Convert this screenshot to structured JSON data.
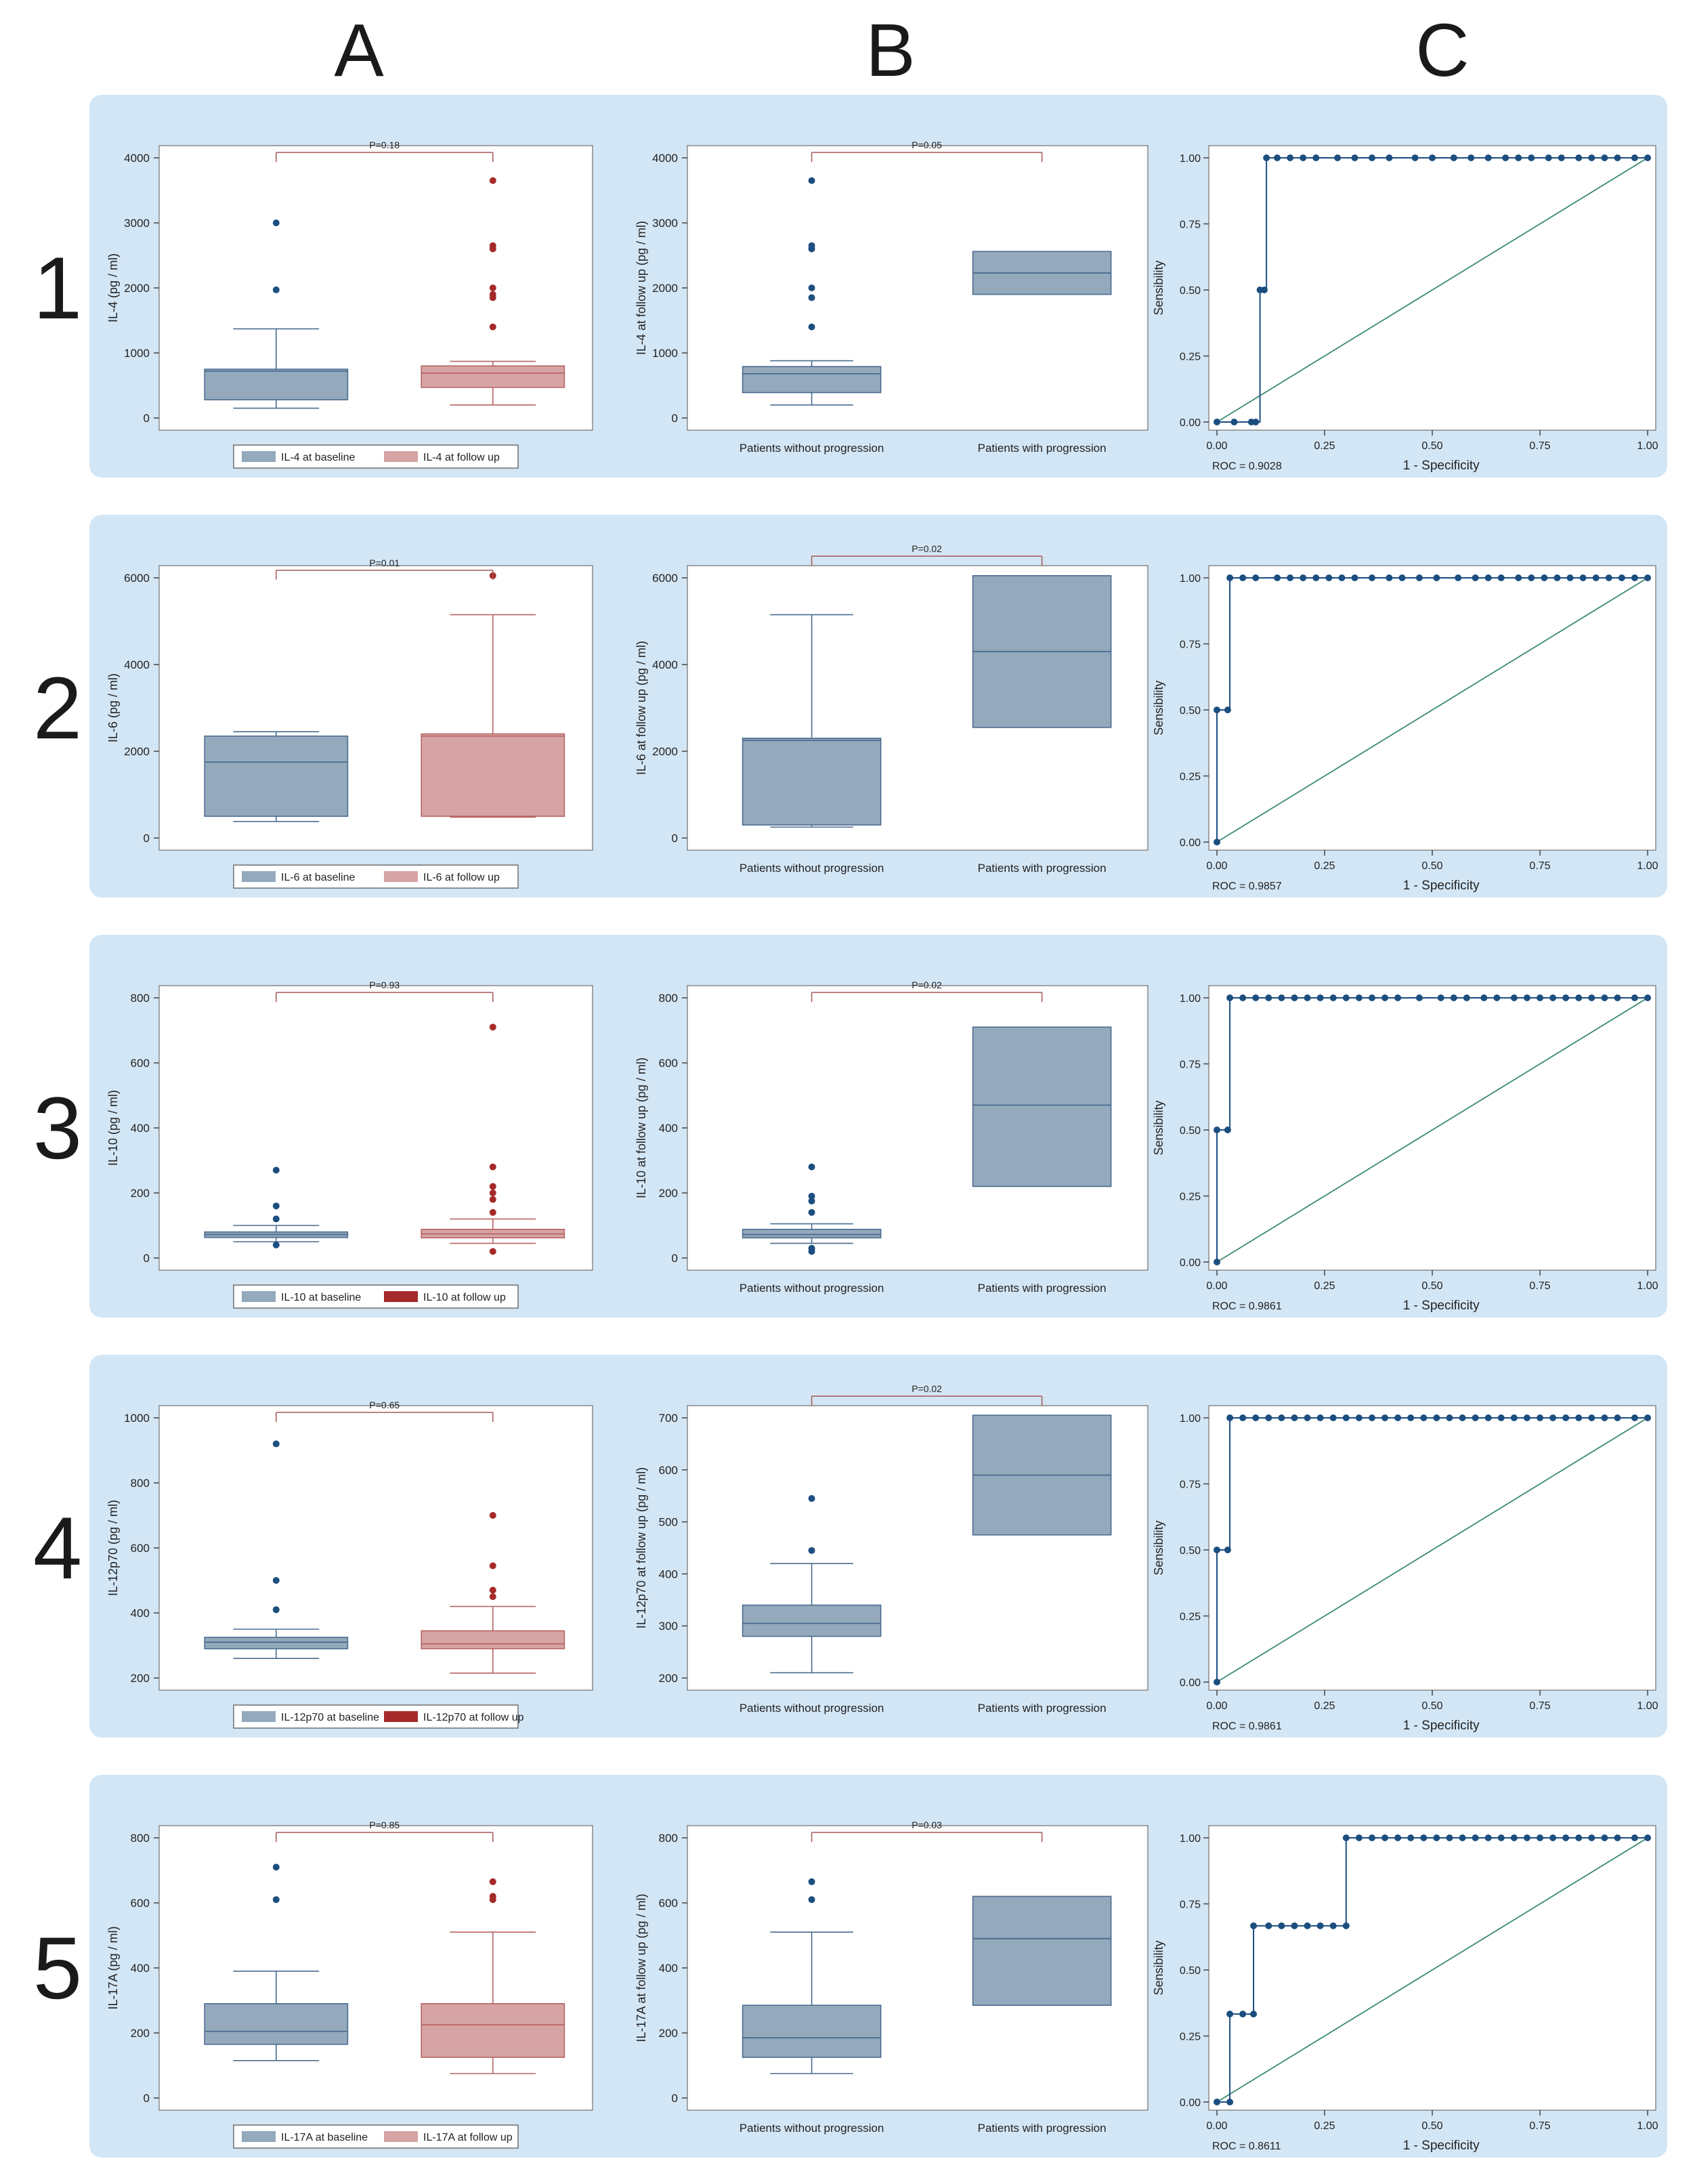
{
  "column_labels": [
    "A",
    "B",
    "C"
  ],
  "row_labels": [
    "1",
    "2",
    "3",
    "4",
    "5"
  ],
  "colors": {
    "band": "#d3e6f5",
    "baseline_box": "#95a9bd",
    "baseline_edge": "#4a6c8f",
    "follow_box_light": "#d6a4a4",
    "follow_edge_light": "#b86464",
    "follow_swatch_dark": "#a52a2a",
    "roc_line": "#1c4e80",
    "diag_line": "#3a8a78"
  },
  "chart_data": [
    {
      "type": "box",
      "panel": "1A",
      "ylabel": "IL-4  (pg / ml)",
      "ylim": [
        0,
        4000
      ],
      "yticks": [
        0,
        1000,
        2000,
        3000,
        4000
      ],
      "pvalue": "P=0.18",
      "legend": [
        "IL-4 at baseline",
        "IL-4 at follow up"
      ],
      "follow_color": "light",
      "boxes": [
        {
          "q1": 280,
          "median": 720,
          "q3": 750,
          "whislo": 150,
          "whishi": 1370,
          "fliers": [
            1970,
            3000
          ]
        },
        {
          "q1": 470,
          "median": 690,
          "q3": 800,
          "whislo": 200,
          "whishi": 870,
          "fliers": [
            1400,
            1850,
            1900,
            2000,
            2600,
            2650,
            3650
          ]
        }
      ]
    },
    {
      "type": "box",
      "panel": "1B",
      "ylabel": "IL-4 at follow up (pg / ml)",
      "ylim": [
        0,
        4000
      ],
      "yticks": [
        0,
        1000,
        2000,
        3000,
        4000
      ],
      "pvalue": "P=0.05",
      "categories": [
        "Patients without progression",
        "Patients with progression"
      ],
      "boxes": [
        {
          "q1": 390,
          "median": 680,
          "q3": 790,
          "whislo": 200,
          "whishi": 880,
          "fliers": [
            1400,
            1850,
            2000,
            2600,
            2650,
            3650
          ]
        },
        {
          "q1": 1900,
          "median": 2230,
          "q3": 2560,
          "whislo": 1900,
          "whishi": 2560,
          "fliers": []
        }
      ]
    },
    {
      "type": "line",
      "panel": "1C",
      "xlabel": "1 - Specificity",
      "ylabel": "Sensibility",
      "xticks": [
        "0.00",
        "0.25",
        "0.50",
        "0.75",
        "1.00"
      ],
      "yticks": [
        "0.00",
        "0.25",
        "0.50",
        "0.75",
        "1.00"
      ],
      "roc_label": "ROC = 0.9028",
      "x": [
        0,
        0.04,
        0.08,
        0.09,
        0.1,
        0.11,
        0.115,
        0.14,
        0.17,
        0.2,
        0.23,
        0.28,
        0.32,
        0.36,
        0.4,
        0.46,
        0.5,
        0.55,
        0.59,
        0.63,
        0.67,
        0.7,
        0.73,
        0.77,
        0.8,
        0.84,
        0.87,
        0.9,
        0.93,
        0.97,
        1.0
      ],
      "y": [
        0,
        0,
        0,
        0,
        0.5,
        0.5,
        1,
        1,
        1,
        1,
        1,
        1,
        1,
        1,
        1,
        1,
        1,
        1,
        1,
        1,
        1,
        1,
        1,
        1,
        1,
        1,
        1,
        1,
        1,
        1,
        1
      ]
    },
    {
      "type": "box",
      "panel": "2A",
      "ylabel": "IL-6  (pg / ml)",
      "ylim": [
        0,
        6000
      ],
      "yticks": [
        0,
        2000,
        4000,
        6000
      ],
      "pvalue": "P=0.01",
      "legend": [
        "IL-6 at baseline",
        "IL-6 at follow up"
      ],
      "follow_color": "light",
      "boxes": [
        {
          "q1": 500,
          "median": 1750,
          "q3": 2350,
          "whislo": 380,
          "whishi": 2450,
          "fliers": []
        },
        {
          "q1": 500,
          "median": 2350,
          "q3": 2400,
          "whislo": 480,
          "whishi": 5150,
          "fliers": [
            6050
          ]
        }
      ]
    },
    {
      "type": "box",
      "panel": "2B",
      "ylabel": "IL-6 at follow up (pg / ml)",
      "ylim": [
        0,
        6000
      ],
      "yticks": [
        0,
        2000,
        4000,
        6000
      ],
      "pvalue": "P=0.02",
      "categories": [
        "Patients without progression",
        "Patients with progression"
      ],
      "boxes": [
        {
          "q1": 300,
          "median": 2250,
          "q3": 2300,
          "whislo": 250,
          "whishi": 5150,
          "fliers": []
        },
        {
          "q1": 2550,
          "median": 4300,
          "q3": 6050,
          "whislo": 2550,
          "whishi": 6050,
          "fliers": []
        }
      ]
    },
    {
      "type": "line",
      "panel": "2C",
      "xlabel": "1 - Specificity",
      "ylabel": "Sensibility",
      "xticks": [
        "0.00",
        "0.25",
        "0.50",
        "0.75",
        "1.00"
      ],
      "yticks": [
        "0.00",
        "0.25",
        "0.50",
        "0.75",
        "1.00"
      ],
      "roc_label": "ROC = 0.9857",
      "x": [
        0,
        0,
        0.025,
        0.03,
        0.06,
        0.09,
        0.14,
        0.17,
        0.2,
        0.23,
        0.26,
        0.29,
        0.32,
        0.36,
        0.4,
        0.43,
        0.47,
        0.51,
        0.56,
        0.6,
        0.63,
        0.66,
        0.7,
        0.73,
        0.76,
        0.79,
        0.82,
        0.85,
        0.88,
        0.91,
        0.94,
        0.97,
        1.0
      ],
      "y": [
        0,
        0.5,
        0.5,
        1,
        1,
        1,
        1,
        1,
        1,
        1,
        1,
        1,
        1,
        1,
        1,
        1,
        1,
        1,
        1,
        1,
        1,
        1,
        1,
        1,
        1,
        1,
        1,
        1,
        1,
        1,
        1,
        1,
        1
      ]
    },
    {
      "type": "box",
      "panel": "3A",
      "ylabel": "IL-10  (pg / ml)",
      "ylim": [
        0,
        800
      ],
      "yticks": [
        0,
        200,
        400,
        600,
        800
      ],
      "pvalue": "P=0.93",
      "legend": [
        "IL-10 at baseline",
        "IL-10 at follow up"
      ],
      "follow_color": "dark",
      "boxes": [
        {
          "q1": 63,
          "median": 72,
          "q3": 80,
          "whislo": 50,
          "whishi": 100,
          "fliers": [
            40,
            120,
            160,
            270
          ]
        },
        {
          "q1": 62,
          "median": 74,
          "q3": 88,
          "whislo": 45,
          "whishi": 120,
          "fliers": [
            20,
            140,
            180,
            200,
            220,
            280,
            710
          ]
        }
      ]
    },
    {
      "type": "box",
      "panel": "3B",
      "ylabel": "IL-10 at follow up (pg / ml)",
      "ylim": [
        0,
        800
      ],
      "yticks": [
        0,
        200,
        400,
        600,
        800
      ],
      "pvalue": "P=0.02",
      "categories": [
        "Patients without progression",
        "Patients with progression"
      ],
      "boxes": [
        {
          "q1": 62,
          "median": 72,
          "q3": 88,
          "whislo": 45,
          "whishi": 105,
          "fliers": [
            20,
            30,
            140,
            175,
            190,
            280
          ]
        },
        {
          "q1": 220,
          "median": 470,
          "q3": 710,
          "whislo": 220,
          "whishi": 710,
          "fliers": []
        }
      ]
    },
    {
      "type": "line",
      "panel": "3C",
      "xlabel": "1 - Specificity",
      "ylabel": "Sensibility",
      "xticks": [
        "0.00",
        "0.25",
        "0.50",
        "0.75",
        "1.00"
      ],
      "yticks": [
        "0.00",
        "0.25",
        "0.50",
        "0.75",
        "1.00"
      ],
      "roc_label": "ROC = 0.9861",
      "x": [
        0,
        0,
        0.025,
        0.03,
        0.06,
        0.09,
        0.12,
        0.15,
        0.18,
        0.21,
        0.24,
        0.27,
        0.3,
        0.33,
        0.36,
        0.39,
        0.42,
        0.47,
        0.52,
        0.55,
        0.58,
        0.62,
        0.65,
        0.69,
        0.72,
        0.75,
        0.78,
        0.81,
        0.84,
        0.87,
        0.9,
        0.93,
        0.97,
        1.0
      ],
      "y": [
        0,
        0.5,
        0.5,
        1,
        1,
        1,
        1,
        1,
        1,
        1,
        1,
        1,
        1,
        1,
        1,
        1,
        1,
        1,
        1,
        1,
        1,
        1,
        1,
        1,
        1,
        1,
        1,
        1,
        1,
        1,
        1,
        1,
        1,
        1
      ]
    },
    {
      "type": "box",
      "panel": "4A",
      "ylabel": "IL-12p70  (pg / ml)",
      "ylim": [
        200,
        1000
      ],
      "yticks": [
        200,
        400,
        600,
        800,
        1000
      ],
      "pvalue": "P=0.65",
      "legend": [
        "IL-12p70 at baseline",
        "IL-12p70 at follow up"
      ],
      "follow_color": "dark",
      "boxes": [
        {
          "q1": 290,
          "median": 310,
          "q3": 325,
          "whislo": 260,
          "whishi": 350,
          "fliers": [
            410,
            500,
            920
          ]
        },
        {
          "q1": 290,
          "median": 305,
          "q3": 345,
          "whislo": 215,
          "whishi": 420,
          "fliers": [
            450,
            470,
            545,
            700
          ]
        }
      ]
    },
    {
      "type": "box",
      "panel": "4B",
      "ylabel": "IL-12p70 at follow up (pg / ml)",
      "ylim": [
        200,
        700
      ],
      "yticks": [
        200,
        300,
        400,
        500,
        600,
        700
      ],
      "pvalue": "P=0.02",
      "categories": [
        "Patients without progression",
        "Patients with progression"
      ],
      "boxes": [
        {
          "q1": 280,
          "median": 305,
          "q3": 340,
          "whislo": 210,
          "whishi": 420,
          "fliers": [
            445,
            545
          ]
        },
        {
          "q1": 475,
          "median": 590,
          "q3": 705,
          "whislo": 475,
          "whishi": 705,
          "fliers": []
        }
      ]
    },
    {
      "type": "line",
      "panel": "4C",
      "xlabel": "1 - Specificity",
      "ylabel": "Sensibility",
      "xticks": [
        "0.00",
        "0.25",
        "0.50",
        "0.75",
        "1.00"
      ],
      "yticks": [
        "0.00",
        "0.25",
        "0.50",
        "0.75",
        "1.00"
      ],
      "roc_label": "ROC = 0.9861",
      "x": [
        0,
        0,
        0.025,
        0.03,
        0.06,
        0.09,
        0.12,
        0.15,
        0.18,
        0.21,
        0.24,
        0.27,
        0.3,
        0.33,
        0.36,
        0.39,
        0.42,
        0.45,
        0.48,
        0.51,
        0.54,
        0.57,
        0.6,
        0.63,
        0.66,
        0.69,
        0.72,
        0.75,
        0.78,
        0.81,
        0.84,
        0.87,
        0.9,
        0.93,
        0.97,
        1.0
      ],
      "y": [
        0,
        0.5,
        0.5,
        1,
        1,
        1,
        1,
        1,
        1,
        1,
        1,
        1,
        1,
        1,
        1,
        1,
        1,
        1,
        1,
        1,
        1,
        1,
        1,
        1,
        1,
        1,
        1,
        1,
        1,
        1,
        1,
        1,
        1,
        1,
        1,
        1
      ]
    },
    {
      "type": "box",
      "panel": "5A",
      "ylabel": "IL-17A  (pg / ml)",
      "ylim": [
        0,
        800
      ],
      "yticks": [
        0,
        200,
        400,
        600,
        800
      ],
      "pvalue": "P=0.85",
      "legend": [
        "IL-17A  at baseline",
        "IL-17A  at follow up"
      ],
      "follow_color": "light",
      "boxes": [
        {
          "q1": 165,
          "median": 205,
          "q3": 290,
          "whislo": 115,
          "whishi": 390,
          "fliers": [
            610,
            710
          ]
        },
        {
          "q1": 125,
          "median": 225,
          "q3": 290,
          "whislo": 75,
          "whishi": 510,
          "fliers": [
            610,
            620,
            665
          ]
        }
      ]
    },
    {
      "type": "box",
      "panel": "5B",
      "ylabel": "IL-17A at follow up (pg / ml)",
      "ylim": [
        0,
        800
      ],
      "yticks": [
        0,
        200,
        400,
        600,
        800
      ],
      "pvalue": "P=0.03",
      "categories": [
        "Patients without progression",
        "Patients with progression"
      ],
      "boxes": [
        {
          "q1": 125,
          "median": 185,
          "q3": 285,
          "whislo": 75,
          "whishi": 510,
          "fliers": [
            610,
            665
          ]
        },
        {
          "q1": 285,
          "median": 490,
          "q3": 620,
          "whislo": 285,
          "whishi": 620,
          "fliers": []
        }
      ]
    },
    {
      "type": "line",
      "panel": "5C",
      "xlabel": "1 - Specificity",
      "ylabel": "Sensibility",
      "xticks": [
        "0.00",
        "0.25",
        "0.50",
        "0.75",
        "1.00"
      ],
      "yticks": [
        "0.00",
        "0.25",
        "0.50",
        "0.75",
        "1.00"
      ],
      "roc_label": "ROC = 0.8611",
      "x": [
        0,
        0.03,
        0.03,
        0.06,
        0.085,
        0.085,
        0.12,
        0.15,
        0.18,
        0.21,
        0.24,
        0.27,
        0.3,
        0.3,
        0.33,
        0.36,
        0.39,
        0.42,
        0.45,
        0.48,
        0.51,
        0.54,
        0.57,
        0.6,
        0.63,
        0.66,
        0.69,
        0.72,
        0.75,
        0.78,
        0.81,
        0.84,
        0.87,
        0.9,
        0.93,
        0.97,
        1.0
      ],
      "y": [
        0,
        0,
        0.333,
        0.333,
        0.333,
        0.667,
        0.667,
        0.667,
        0.667,
        0.667,
        0.667,
        0.667,
        0.667,
        1,
        1,
        1,
        1,
        1,
        1,
        1,
        1,
        1,
        1,
        1,
        1,
        1,
        1,
        1,
        1,
        1,
        1,
        1,
        1,
        1,
        1,
        1,
        1
      ]
    }
  ]
}
